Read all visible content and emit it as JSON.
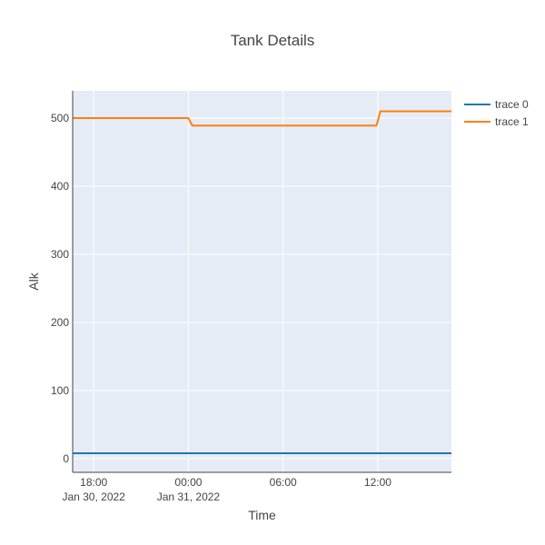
{
  "chart_data": {
    "type": "line",
    "title": "Tank Details",
    "xlabel": "Time",
    "ylabel": "Alk",
    "x_range": [
      "2022-01-30 16:40",
      "2022-01-31 16:40"
    ],
    "ylim": [
      -20,
      540
    ],
    "grid": true,
    "legend_position": "top-right",
    "x_ticks": [
      {
        "value": "2022-01-30 18:00",
        "label": "18:00",
        "sublabel": "Jan 30, 2022"
      },
      {
        "value": "2022-01-31 00:00",
        "label": "00:00",
        "sublabel": "Jan 31, 2022"
      },
      {
        "value": "2022-01-31 06:00",
        "label": "06:00",
        "sublabel": ""
      },
      {
        "value": "2022-01-31 12:00",
        "label": "12:00",
        "sublabel": ""
      }
    ],
    "y_ticks": [
      0,
      100,
      200,
      300,
      400,
      500
    ],
    "series": [
      {
        "name": "trace 0",
        "color": "#1f77b4",
        "points": [
          {
            "x": "2022-01-30 16:40",
            "y": 8
          },
          {
            "x": "2022-01-31 16:40",
            "y": 8
          }
        ]
      },
      {
        "name": "trace 1",
        "color": "#ff7f0e",
        "points": [
          {
            "x": "2022-01-30 16:40",
            "y": 500
          },
          {
            "x": "2022-01-31 00:00",
            "y": 500
          },
          {
            "x": "2022-01-31 00:15",
            "y": 489
          },
          {
            "x": "2022-01-31 11:55",
            "y": 489
          },
          {
            "x": "2022-01-31 12:10",
            "y": 510
          },
          {
            "x": "2022-01-31 16:40",
            "y": 510
          }
        ]
      }
    ]
  }
}
